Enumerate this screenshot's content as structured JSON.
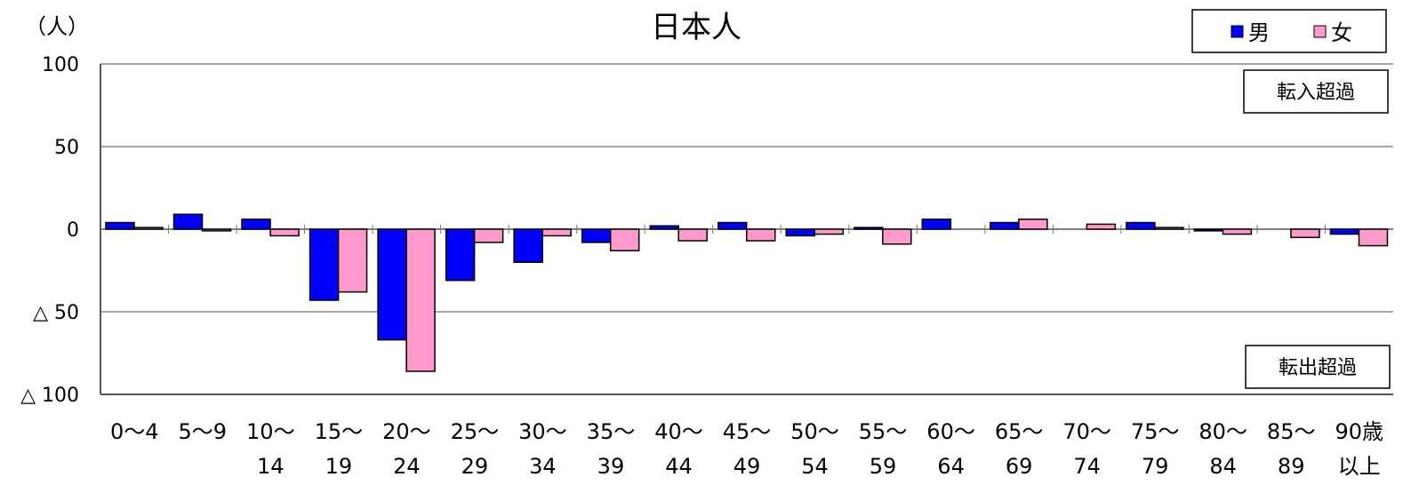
{
  "chart_data": {
    "type": "bar",
    "title": "日本人",
    "unit_label": "（人）",
    "ylim": [
      -100,
      100
    ],
    "ytick_values": [
      100,
      50,
      0,
      -50,
      -100
    ],
    "ytick_labels": [
      "100",
      "50",
      "0",
      "△ 50",
      "△ 100"
    ],
    "grid": true,
    "legend_position": "top-right",
    "categories": [
      [
        "0〜4",
        ""
      ],
      [
        "5〜9",
        ""
      ],
      [
        "10〜",
        "14"
      ],
      [
        "15〜",
        "19"
      ],
      [
        "20〜",
        "24"
      ],
      [
        "25〜",
        "29"
      ],
      [
        "30〜",
        "34"
      ],
      [
        "35〜",
        "39"
      ],
      [
        "40〜",
        "44"
      ],
      [
        "45〜",
        "49"
      ],
      [
        "50〜",
        "54"
      ],
      [
        "55〜",
        "59"
      ],
      [
        "60〜",
        "64"
      ],
      [
        "65〜",
        "69"
      ],
      [
        "70〜",
        "74"
      ],
      [
        "75〜",
        "79"
      ],
      [
        "80〜",
        "84"
      ],
      [
        "85〜",
        "89"
      ],
      [
        "90歳",
        "以上"
      ]
    ],
    "series": [
      {
        "name": "男",
        "color": "#0000ff",
        "values": [
          4,
          9,
          6,
          -43,
          -67,
          -31,
          -20,
          -8,
          2,
          4,
          -4,
          1,
          6,
          4,
          0,
          4,
          -1,
          0,
          -3
        ]
      },
      {
        "name": "女",
        "color": "#ff99cc",
        "values": [
          1,
          -1,
          -4,
          -38,
          -86,
          -8,
          -4,
          -13,
          -7,
          -7,
          -3,
          -9,
          0,
          6,
          3,
          1,
          -3,
          -5,
          -10
        ]
      }
    ],
    "annotations": [
      "転入超過",
      "転出超過"
    ]
  }
}
